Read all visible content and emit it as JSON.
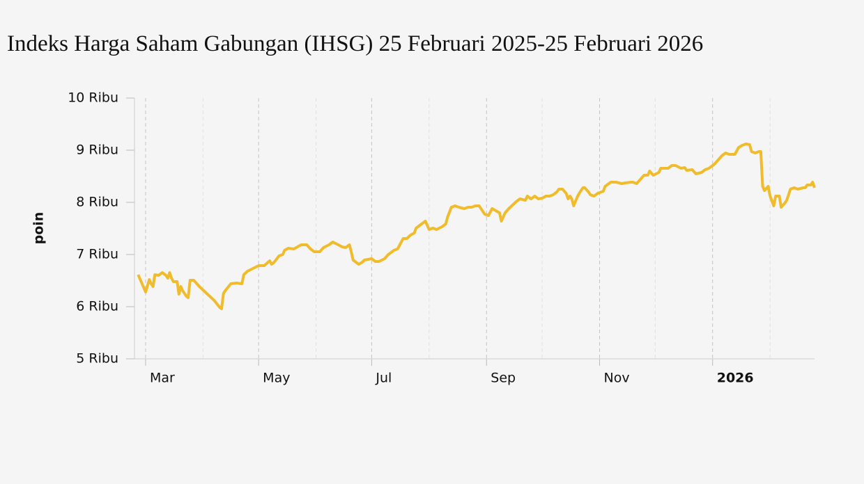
{
  "chart_data": {
    "type": "line",
    "title": "Indeks Harga Saham Gabungan (IHSG) 25 Februari 2025-25 Februari 2026",
    "y_label": "poin",
    "x": [
      -4,
      0,
      2,
      3,
      4,
      5,
      7,
      9,
      11,
      12,
      13,
      14,
      15,
      17,
      18,
      19,
      20,
      22,
      23,
      24,
      26,
      29,
      33,
      37,
      40,
      41,
      42,
      43,
      46,
      49,
      52,
      53,
      55,
      58,
      61,
      64,
      67,
      68,
      69,
      70,
      72,
      74,
      75,
      77,
      80,
      82,
      84,
      87,
      89,
      91,
      94,
      96,
      99,
      101,
      104,
      106,
      108,
      110,
      111,
      112,
      114,
      115,
      117,
      118,
      120,
      122,
      124,
      126,
      129,
      131,
      134,
      136,
      138,
      139,
      141,
      143,
      145,
      146,
      149,
      151,
      153,
      155,
      157,
      160,
      162,
      163,
      165,
      167,
      169,
      172,
      174,
      176,
      178,
      180,
      181,
      183,
      185,
      187,
      189,
      191,
      192,
      194,
      196,
      198,
      200,
      202,
      205,
      206,
      208,
      210,
      212,
      214,
      216,
      218,
      220,
      222,
      223,
      225,
      227,
      228,
      229,
      230,
      231,
      233,
      234,
      236,
      237,
      239,
      240,
      242,
      244,
      247,
      248,
      251,
      254,
      257,
      259,
      262,
      263,
      265,
      267,
      269,
      271,
      272,
      274,
      277,
      278,
      281,
      282,
      284,
      286,
      289,
      291,
      292,
      295,
      297,
      300,
      302,
      304,
      307,
      309,
      311,
      313,
      315,
      318,
      320,
      322,
      324,
      326,
      327,
      329,
      331,
      332,
      333,
      334,
      336,
      337,
      339,
      340,
      342,
      343,
      345,
      346,
      348,
      350,
      352,
      355,
      356,
      357,
      359,
      360,
      361
    ],
    "series": [
      {
        "name": "IHSG",
        "color": "#f0bc2c",
        "values": [
          6613,
          6280,
          6520,
          6440,
          6387,
          6613,
          6600,
          6653,
          6600,
          6547,
          6653,
          6547,
          6480,
          6480,
          6240,
          6387,
          6307,
          6200,
          6173,
          6507,
          6507,
          6387,
          6253,
          6120,
          5987,
          5960,
          6253,
          6307,
          6440,
          6453,
          6440,
          6613,
          6680,
          6733,
          6787,
          6787,
          6880,
          6813,
          6840,
          6880,
          6973,
          7000,
          7080,
          7120,
          7107,
          7147,
          7187,
          7187,
          7107,
          7053,
          7053,
          7133,
          7187,
          7240,
          7187,
          7147,
          7133,
          7187,
          7053,
          6893,
          6840,
          6813,
          6853,
          6893,
          6907,
          6920,
          6867,
          6867,
          6920,
          7000,
          7080,
          7107,
          7240,
          7307,
          7307,
          7373,
          7413,
          7507,
          7587,
          7640,
          7480,
          7507,
          7480,
          7533,
          7587,
          7720,
          7907,
          7933,
          7907,
          7880,
          7907,
          7907,
          7933,
          7933,
          7880,
          7773,
          7747,
          7880,
          7840,
          7800,
          7640,
          7800,
          7880,
          7947,
          8013,
          8067,
          8040,
          8120,
          8067,
          8120,
          8067,
          8080,
          8120,
          8120,
          8147,
          8200,
          8253,
          8253,
          8173,
          8067,
          8120,
          8067,
          7933,
          8107,
          8173,
          8280,
          8280,
          8200,
          8147,
          8120,
          8173,
          8213,
          8307,
          8387,
          8387,
          8360,
          8373,
          8387,
          8387,
          8360,
          8440,
          8520,
          8520,
          8600,
          8520,
          8573,
          8653,
          8653,
          8653,
          8707,
          8707,
          8653,
          8667,
          8613,
          8627,
          8547,
          8573,
          8627,
          8653,
          8733,
          8813,
          8893,
          8947,
          8920,
          8920,
          9053,
          9093,
          9120,
          9107,
          8973,
          8947,
          8973,
          8973,
          8307,
          8227,
          8307,
          8120,
          7933,
          8120,
          8120,
          7907,
          7987,
          8040,
          8253,
          8280,
          8253,
          8280,
          8280,
          8333,
          8333,
          8387,
          8280
        ]
      }
    ],
    "xlim": [
      -6,
      361
    ],
    "xticks": [
      {
        "value": 0,
        "label": "Mar"
      },
      {
        "value": 61,
        "label": "May"
      },
      {
        "value": 122,
        "label": "Jul"
      },
      {
        "value": 184,
        "label": "Sep"
      },
      {
        "value": 245,
        "label": "Nov"
      },
      {
        "value": 306,
        "label": "2026"
      }
    ],
    "x_minor_ticks": [
      31,
      92,
      153,
      214,
      275,
      337
    ],
    "bold_xticks": [
      5
    ],
    "ylim": [
      5000,
      10000
    ],
    "yticks": [
      {
        "value": 5000,
        "label": "5 Ribu"
      },
      {
        "value": 6000,
        "label": "6 Ribu"
      },
      {
        "value": 7000,
        "label": "7 Ribu"
      },
      {
        "value": 8000,
        "label": "8 Ribu"
      },
      {
        "value": 9000,
        "label": "9 Ribu"
      },
      {
        "value": 10000,
        "label": "10 Ribu"
      }
    ],
    "grid": true
  }
}
